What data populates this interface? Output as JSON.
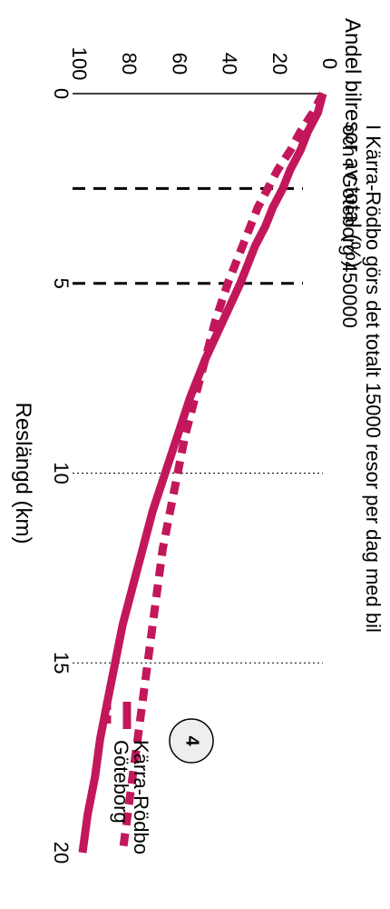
{
  "chart_data": {
    "type": "line",
    "orientation": "rotated-90-clockwise",
    "ylabel": "Andel bilresor av total (%)",
    "xlabel": "Reslängd (km)",
    "annotation": [
      "I Kärra-Rödbo görs det totalt 15000 resor per dag med bil",
      "och i Göteborg 450000"
    ],
    "badge": "4",
    "xlim": [
      0,
      20
    ],
    "ylim": [
      0,
      100
    ],
    "x_ticks": [
      "0",
      "5",
      "10",
      "15",
      "20"
    ],
    "y_ticks": [
      "0",
      "20",
      "40",
      "60",
      "80",
      "100"
    ],
    "grid": "vertical dotted at x=10 and x=15; dashed reference lines at x=2.5 and x=5",
    "legend_placement": "bottom-right",
    "colors": {
      "accent": "#c2185b"
    },
    "series": [
      {
        "name": "Kärra-Rödbo",
        "style": "solid",
        "x": [
          0,
          0.5,
          1,
          1.5,
          2,
          2.5,
          3,
          3.5,
          4,
          4.5,
          5,
          6,
          7,
          8,
          9,
          10,
          11,
          12,
          13,
          14,
          15,
          16,
          17,
          18,
          19,
          20
        ],
        "y": [
          0,
          2,
          6,
          9,
          13,
          16,
          20,
          23,
          27,
          30,
          33,
          40,
          47,
          53,
          58,
          63,
          68,
          72,
          76,
          80,
          83,
          86,
          89,
          91,
          94,
          96
        ]
      },
      {
        "name": "Göteborg",
        "style": "dashed",
        "x": [
          0,
          0.5,
          1,
          1.5,
          2,
          2.5,
          3,
          3.5,
          4,
          4.5,
          5,
          6,
          7,
          8,
          9,
          10,
          11,
          12,
          13,
          14,
          15,
          16,
          17,
          18,
          19,
          20
        ],
        "y": [
          0,
          4,
          9,
          13,
          18,
          22,
          26,
          29,
          32,
          35,
          38,
          43,
          47,
          51,
          55,
          58,
          61,
          64,
          66,
          68,
          70,
          72,
          74,
          76,
          78,
          80
        ]
      }
    ]
  }
}
